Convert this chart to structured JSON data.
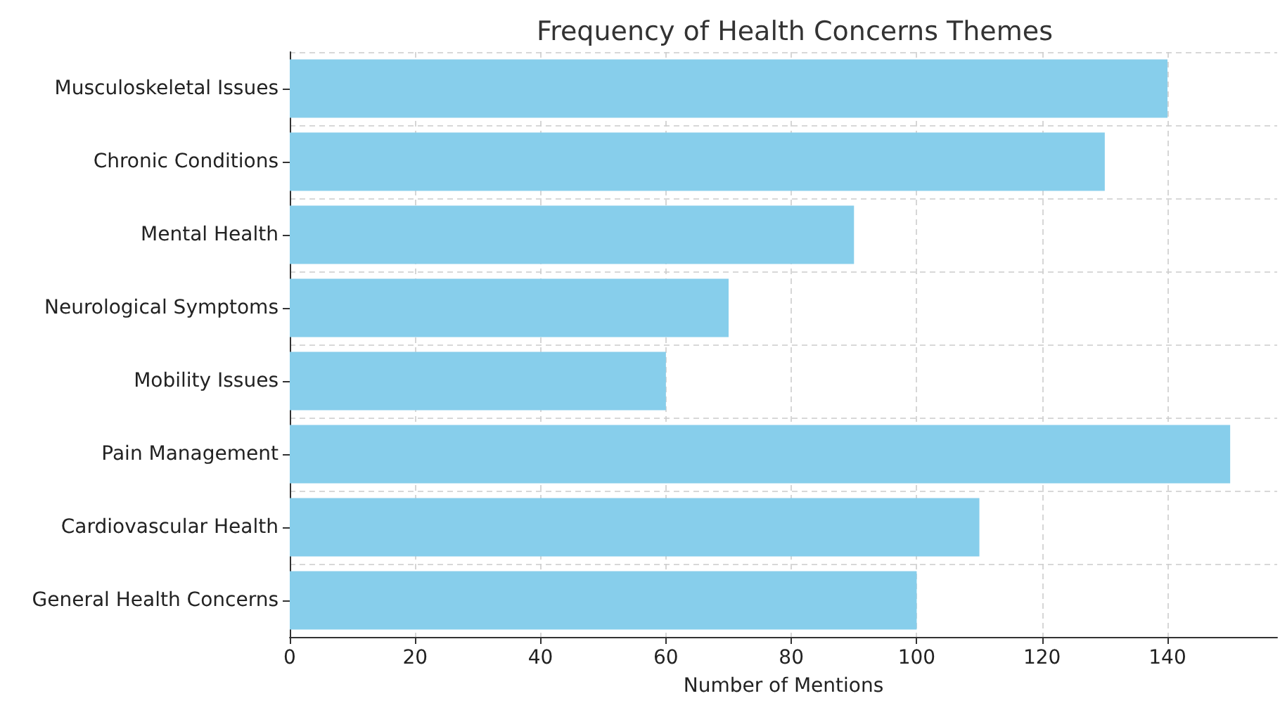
{
  "chart_data": {
    "type": "bar",
    "orientation": "horizontal",
    "title": "Frequency of Health Concerns Themes",
    "xlabel": "Number of Mentions",
    "categories": [
      "Musculoskeletal Issues",
      "Chronic Conditions",
      "Mental Health",
      "Neurological Symptoms",
      "Mobility Issues",
      "Pain Management",
      "Cardiovascular Health",
      "General Health Concerns"
    ],
    "values": [
      140,
      130,
      90,
      70,
      60,
      150,
      110,
      100
    ],
    "color": "#87ceeb",
    "xlim": [
      0,
      157.5
    ],
    "xticks": [
      0,
      20,
      40,
      60,
      80,
      100,
      120,
      140
    ],
    "grid": true
  }
}
